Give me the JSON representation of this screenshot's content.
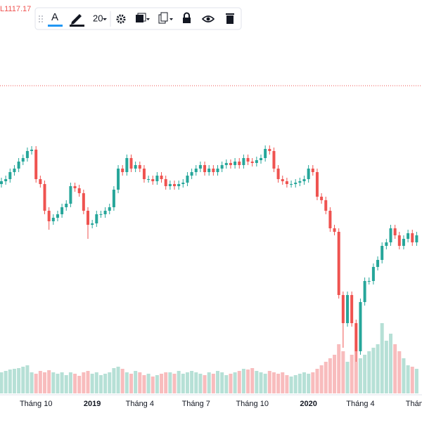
{
  "chart_data": {
    "type": "candlestick",
    "ohlc_legend": "L1117.17",
    "categories": [
      null,
      null,
      null,
      null,
      null,
      null,
      null,
      null,
      "Tháng 10",
      null,
      null,
      null,
      null,
      null,
      null,
      null,
      null,
      null,
      null,
      null,
      null,
      "2019",
      null,
      null,
      null,
      null,
      null,
      null,
      null,
      null,
      null,
      null,
      "Tháng 4",
      null,
      null,
      null,
      null,
      null,
      null,
      null,
      null,
      null,
      null,
      null,
      null,
      "Tháng 7",
      null,
      null,
      null,
      null,
      null,
      null,
      null,
      null,
      null,
      null,
      null,
      null,
      "Tháng 10",
      null,
      null,
      null,
      null,
      null,
      null,
      null,
      null,
      null,
      null,
      null,
      null,
      "2020",
      null,
      null,
      null,
      null,
      null,
      null,
      null,
      null,
      null,
      null,
      null,
      "Tháng 4",
      null,
      null,
      null,
      null,
      null,
      null,
      null,
      null,
      null,
      null,
      null,
      null,
      "Tháng"
    ],
    "open": [
      1205,
      1209,
      1212,
      1222,
      1227,
      1237,
      1242,
      1252,
      1254,
      1212,
      1205,
      1167,
      1152,
      1157,
      1162,
      1172,
      1177,
      1202,
      1199,
      1192,
      1167,
      1147,
      1149,
      1162,
      1162,
      1167,
      1172,
      1197,
      1227,
      1222,
      1242,
      1227,
      1232,
      1227,
      1212,
      1212,
      1209,
      1217,
      1212,
      1202,
      1205,
      1202,
      1205,
      1207,
      1217,
      1222,
      1227,
      1232,
      1222,
      1227,
      1222,
      1227,
      1232,
      1235,
      1232,
      1237,
      1232,
      1242,
      1237,
      1235,
      1239,
      1242,
      1255,
      1252,
      1227,
      1212,
      1209,
      1205,
      1205,
      1207,
      1209,
      1212,
      1227,
      1222,
      1187,
      1182,
      1167,
      1142,
      1137,
      1047,
      1007,
      1047,
      1007,
      967,
      1037,
      1067,
      1067,
      1087,
      1097,
      1117,
      1122,
      1142,
      1132,
      1117,
      1127,
      1135,
      1122
    ],
    "high": [
      1214,
      1217,
      1227,
      1232,
      1242,
      1247,
      1257,
      1259,
      1259,
      1217,
      1210,
      1172,
      1162,
      1167,
      1177,
      1182,
      1207,
      1207,
      1204,
      1197,
      1172,
      1154,
      1167,
      1167,
      1172,
      1177,
      1202,
      1232,
      1232,
      1247,
      1247,
      1237,
      1237,
      1232,
      1217,
      1217,
      1222,
      1222,
      1217,
      1210,
      1210,
      1210,
      1212,
      1222,
      1227,
      1232,
      1237,
      1237,
      1232,
      1232,
      1232,
      1237,
      1240,
      1240,
      1242,
      1242,
      1247,
      1247,
      1242,
      1244,
      1247,
      1260,
      1260,
      1257,
      1232,
      1217,
      1214,
      1210,
      1212,
      1214,
      1217,
      1232,
      1232,
      1227,
      1192,
      1187,
      1172,
      1147,
      1142,
      1052,
      1052,
      1052,
      1012,
      1042,
      1072,
      1072,
      1092,
      1102,
      1122,
      1127,
      1147,
      1147,
      1137,
      1132,
      1140,
      1140,
      1137
    ],
    "low": [
      1200,
      1204,
      1207,
      1217,
      1222,
      1232,
      1237,
      1247,
      1207,
      1200,
      1162,
      1140,
      1147,
      1152,
      1157,
      1167,
      1172,
      1194,
      1187,
      1162,
      1127,
      1142,
      1144,
      1157,
      1157,
      1162,
      1167,
      1192,
      1217,
      1217,
      1222,
      1222,
      1222,
      1207,
      1207,
      1204,
      1204,
      1207,
      1197,
      1197,
      1197,
      1197,
      1200,
      1202,
      1212,
      1217,
      1222,
      1217,
      1217,
      1217,
      1217,
      1222,
      1227,
      1227,
      1227,
      1227,
      1227,
      1232,
      1230,
      1230,
      1234,
      1237,
      1247,
      1222,
      1207,
      1204,
      1200,
      1200,
      1200,
      1202,
      1204,
      1207,
      1217,
      1182,
      1177,
      1162,
      1137,
      1132,
      1042,
      972,
      1002,
      1002,
      952,
      962,
      1032,
      1062,
      1062,
      1082,
      1092,
      1112,
      1117,
      1127,
      1112,
      1112,
      1122,
      1117,
      1117
    ],
    "close": [
      1209,
      1212,
      1222,
      1227,
      1237,
      1242,
      1252,
      1254,
      1212,
      1205,
      1167,
      1152,
      1157,
      1162,
      1172,
      1177,
      1202,
      1199,
      1192,
      1167,
      1147,
      1149,
      1162,
      1162,
      1167,
      1172,
      1197,
      1227,
      1222,
      1242,
      1227,
      1232,
      1227,
      1212,
      1212,
      1209,
      1217,
      1212,
      1202,
      1205,
      1202,
      1205,
      1207,
      1217,
      1222,
      1227,
      1232,
      1222,
      1227,
      1222,
      1227,
      1232,
      1235,
      1232,
      1237,
      1232,
      1242,
      1237,
      1235,
      1239,
      1242,
      1255,
      1252,
      1227,
      1212,
      1209,
      1205,
      1205,
      1207,
      1209,
      1212,
      1227,
      1222,
      1187,
      1182,
      1167,
      1142,
      1137,
      1047,
      1007,
      1047,
      1007,
      967,
      1037,
      1067,
      1067,
      1087,
      1097,
      1117,
      1122,
      1142,
      1132,
      1117,
      1127,
      1135,
      1122,
      1132
    ],
    "volume": [
      30,
      32,
      34,
      35,
      36,
      38,
      40,
      30,
      28,
      32,
      30,
      33,
      30,
      28,
      30,
      26,
      30,
      28,
      25,
      30,
      32,
      28,
      30,
      26,
      28,
      30,
      36,
      38,
      35,
      30,
      28,
      32,
      30,
      26,
      28,
      24,
      26,
      28,
      30,
      30,
      28,
      32,
      28,
      30,
      32,
      30,
      28,
      26,
      30,
      28,
      32,
      30,
      26,
      28,
      30,
      32,
      35,
      34,
      36,
      32,
      30,
      28,
      32,
      30,
      28,
      30,
      26,
      24,
      26,
      28,
      30,
      28,
      30,
      35,
      40,
      45,
      50,
      55,
      70,
      60,
      45,
      55,
      60,
      50,
      55,
      60,
      65,
      70,
      100,
      75,
      85,
      70,
      60,
      50,
      40,
      38,
      35
    ],
    "ylim": [
      907,
      1467
    ],
    "y2lim": [
      0,
      560
    ],
    "up_color": "#26a69a",
    "down_color": "#ef5350",
    "volume_up_color": "#b6e0d6",
    "volume_down_color": "#f8bcbd",
    "price_line": 1345,
    "price_line_color": "#ef5350"
  },
  "toolbar": {
    "size_label": "20"
  }
}
